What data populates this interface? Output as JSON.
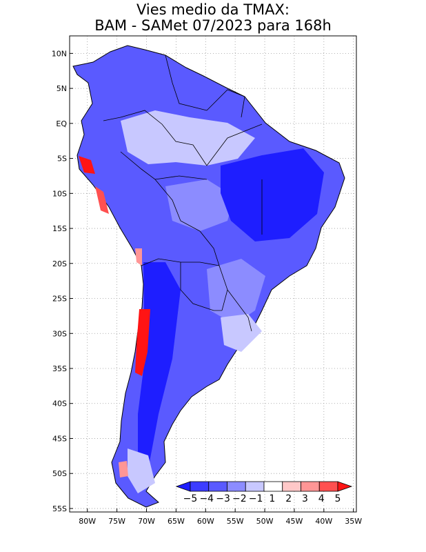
{
  "title": {
    "line1": "Vies medio da TMAX:",
    "line2": "BAM - SAMet 07/2023  para 168h"
  },
  "map": {
    "lat_ticks": [
      "10N",
      "5N",
      "EQ",
      "5S",
      "10S",
      "15S",
      "20S",
      "25S",
      "30S",
      "35S",
      "40S",
      "45S",
      "50S",
      "55S"
    ],
    "lon_ticks": [
      "80W",
      "75W",
      "70W",
      "65W",
      "60W",
      "55W",
      "50W",
      "45W",
      "40W",
      "35W"
    ],
    "lat_range": [
      -55.5,
      12.5
    ],
    "lon_range": [
      -83,
      -34.5
    ]
  },
  "colorbar": {
    "labels": [
      "-5",
      "-4",
      "-3",
      "-2",
      "-1",
      "1",
      "2",
      "3",
      "4",
      "5"
    ],
    "colors": [
      "#1e1eff",
      "#3c3cff",
      "#5a5aff",
      "#8c8cff",
      "#c8c8ff",
      "#ffffff",
      "#ffc8c8",
      "#ff9696",
      "#ff5050",
      "#ff1414"
    ]
  },
  "colors": {
    "frame": "#000000",
    "grid": "#999999",
    "land_base": "#5a5aff"
  }
}
